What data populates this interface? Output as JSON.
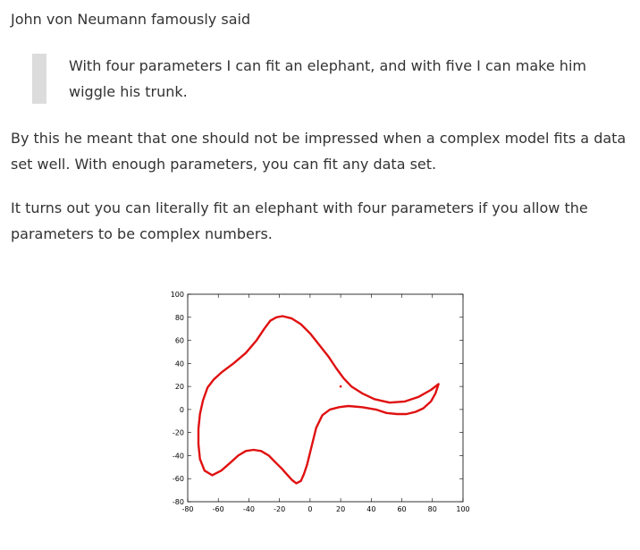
{
  "article": {
    "intro": "John von Neumann famously said",
    "quote": "With four parameters I can fit an elephant, and with five I can make him wiggle his trunk.",
    "para1": "By this he meant that one should not be impressed when a complex model fits a data set well. With enough parameters, you can fit any data set.",
    "para2": "It turns out you can literally fit an elephant with four parameters if you allow the parameters to be complex numbers."
  },
  "chart_data": {
    "type": "line",
    "title": "",
    "xlabel": "",
    "ylabel": "",
    "xlim": [
      -80,
      100
    ],
    "ylim": [
      -80,
      100
    ],
    "x_ticks": [
      -80,
      -60,
      -40,
      -20,
      0,
      20,
      40,
      60,
      80,
      100
    ],
    "y_ticks": [
      -80,
      -60,
      -40,
      -20,
      0,
      20,
      40,
      60,
      80,
      100
    ],
    "grid": false,
    "line_color": "#e01010",
    "series": [
      {
        "x": [
          84,
          79,
          71,
          62,
          52,
          42,
          34,
          27,
          22,
          17,
          12,
          6,
          0,
          -6,
          -12,
          -18,
          -22,
          -26,
          -30,
          -35,
          -42,
          -50,
          -58,
          -63,
          -67,
          -70,
          -72,
          -73,
          -73,
          -72,
          -69,
          -64,
          -58,
          -52,
          -47,
          -42,
          -37,
          -32,
          -27,
          -24,
          -21,
          -18,
          -16,
          -14,
          -12,
          -9,
          -6,
          -4,
          -2,
          1,
          4,
          8,
          13,
          19,
          25,
          34,
          43,
          50,
          57,
          63,
          69,
          74,
          79,
          82,
          84
        ],
        "y": [
          22,
          17,
          11,
          7,
          6,
          9,
          14,
          20,
          27,
          36,
          46,
          56,
          66,
          74,
          79,
          81,
          80,
          77,
          70,
          60,
          49,
          40,
          32,
          26,
          19,
          8,
          -4,
          -17,
          -30,
          -43,
          -53,
          -57,
          -53,
          -46,
          -40,
          -36,
          -35,
          -36,
          -40,
          -44,
          -48,
          -52,
          -55,
          -58,
          -61,
          -64,
          -62,
          -56,
          -48,
          -32,
          -16,
          -5,
          0,
          2,
          3,
          2,
          0,
          -3,
          -4,
          -4,
          -2,
          1,
          7,
          14,
          22
        ]
      }
    ],
    "points": [
      {
        "x": 20,
        "y": 20
      }
    ]
  }
}
